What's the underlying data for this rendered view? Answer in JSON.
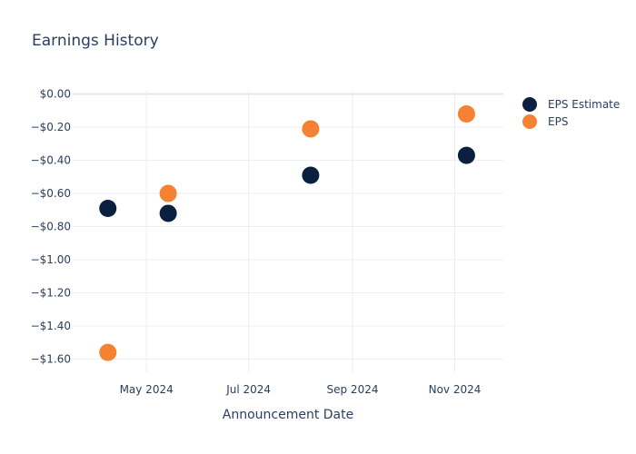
{
  "chart_data": {
    "type": "scatter",
    "title": "Earnings History",
    "xlabel": "Announcement Date",
    "ylabel": "",
    "x_ticks": [
      {
        "date": "2024-05-01",
        "label": "May 2024"
      },
      {
        "date": "2024-07-01",
        "label": "Jul 2024"
      },
      {
        "date": "2024-09-01",
        "label": "Sep 2024"
      },
      {
        "date": "2024-11-01",
        "label": "Nov 2024"
      }
    ],
    "xlim": [
      "2024-03-18",
      "2024-11-30"
    ],
    "y_ticks": [
      {
        "value": 0,
        "label": "$0.00"
      },
      {
        "value": -0.2,
        "label": "−$0.20"
      },
      {
        "value": -0.4,
        "label": "−$0.40"
      },
      {
        "value": -0.6,
        "label": "−$0.60"
      },
      {
        "value": -0.8,
        "label": "−$0.80"
      },
      {
        "value": -1.0,
        "label": "−$1.00"
      },
      {
        "value": -1.2,
        "label": "−$1.20"
      },
      {
        "value": -1.4,
        "label": "−$1.40"
      },
      {
        "value": -1.6,
        "label": "−$1.60"
      }
    ],
    "ylim": [
      -1.68,
      0.02
    ],
    "grid": true,
    "legend_position": "top-right",
    "series": [
      {
        "name": "EPS Estimate",
        "color": "#0b1f3f",
        "points": [
          {
            "x": "2024-04-08",
            "y": -0.69
          },
          {
            "x": "2024-05-14",
            "y": -0.72
          },
          {
            "x": "2024-08-07",
            "y": -0.49
          },
          {
            "x": "2024-11-08",
            "y": -0.37
          }
        ]
      },
      {
        "name": "EPS",
        "color": "#f58233",
        "points": [
          {
            "x": "2024-04-08",
            "y": -1.56
          },
          {
            "x": "2024-05-14",
            "y": -0.6
          },
          {
            "x": "2024-08-07",
            "y": -0.21
          },
          {
            "x": "2024-11-08",
            "y": -0.12
          }
        ]
      }
    ]
  }
}
